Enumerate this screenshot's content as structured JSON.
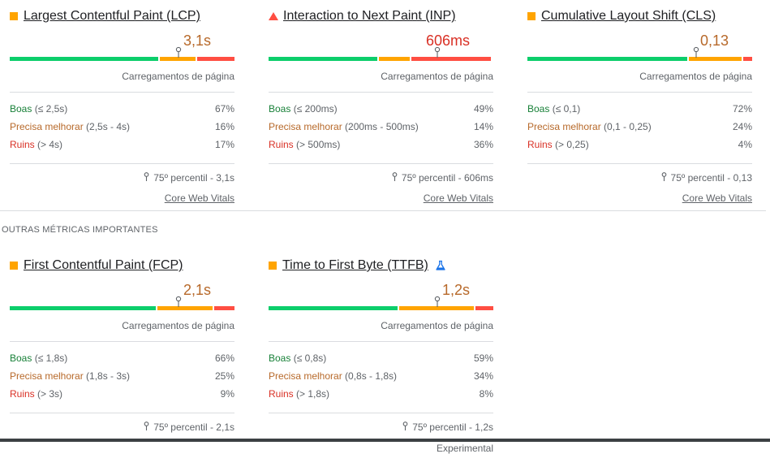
{
  "colors": {
    "good": "#0cce6b",
    "average": "#ffa400",
    "poor": "#ff4e42",
    "good_text": "#188038",
    "average_text": "#b7692a",
    "poor_text": "#d93025"
  },
  "icons": {
    "status_square": "square-icon",
    "status_triangle": "triangle-warning-icon",
    "percentile_pin": "pin-icon",
    "experimental": "flask-icon"
  },
  "core_metrics": [
    {
      "id": "lcp",
      "status": "average",
      "title": "Largest Contentful Paint (LCP)",
      "value": "3,1s",
      "distribution": {
        "good": 0.67,
        "needs_improvement": 0.16,
        "poor": 0.17
      },
      "caption": "Carregamentos de página",
      "rows": [
        {
          "category": "Boas",
          "range": "(≤ 2,5s)",
          "percent": "67%"
        },
        {
          "category": "Precisa melhorar",
          "range": "(2,5s - 4s)",
          "percent": "16%"
        },
        {
          "category": "Ruins",
          "range": "(> 4s)",
          "percent": "17%"
        }
      ],
      "percentile": "75º percentil - 3,1s",
      "link": "Core Web Vitals"
    },
    {
      "id": "inp",
      "status": "poor",
      "title": "Interaction to Next Paint (INP)",
      "value": "606ms",
      "distribution": {
        "good": 0.49,
        "needs_improvement": 0.14,
        "poor": 0.36
      },
      "caption": "Carregamentos de página",
      "rows": [
        {
          "category": "Boas",
          "range": "(≤ 200ms)",
          "percent": "49%"
        },
        {
          "category": "Precisa melhorar",
          "range": "(200ms - 500ms)",
          "percent": "14%"
        },
        {
          "category": "Ruins",
          "range": "(> 500ms)",
          "percent": "36%"
        }
      ],
      "percentile": "75º percentil - 606ms",
      "link": "Core Web Vitals"
    },
    {
      "id": "cls",
      "status": "average",
      "title": "Cumulative Layout Shift (CLS)",
      "value": "0,13",
      "distribution": {
        "good": 0.72,
        "needs_improvement": 0.24,
        "poor": 0.04
      },
      "caption": "Carregamentos de página",
      "rows": [
        {
          "category": "Boas",
          "range": "(≤ 0,1)",
          "percent": "72%"
        },
        {
          "category": "Precisa melhorar",
          "range": "(0,1 - 0,25)",
          "percent": "24%"
        },
        {
          "category": "Ruins",
          "range": "(> 0,25)",
          "percent": "4%"
        }
      ],
      "percentile": "75º percentil - 0,13",
      "link": "Core Web Vitals"
    }
  ],
  "other_section_label": "OUTRAS MÉTRICAS IMPORTANTES",
  "other_metrics": [
    {
      "id": "fcp",
      "status": "average",
      "title": "First Contentful Paint (FCP)",
      "value": "2,1s",
      "distribution": {
        "good": 0.66,
        "needs_improvement": 0.25,
        "poor": 0.09
      },
      "caption": "Carregamentos de página",
      "rows": [
        {
          "category": "Boas",
          "range": "(≤ 1,8s)",
          "percent": "66%"
        },
        {
          "category": "Precisa melhorar",
          "range": "(1,8s - 3s)",
          "percent": "25%"
        },
        {
          "category": "Ruins",
          "range": "(> 3s)",
          "percent": "9%"
        }
      ],
      "percentile": "75º percentil - 2,1s"
    },
    {
      "id": "ttfb",
      "status": "average",
      "title": "Time to First Byte (TTFB)",
      "value": "1,2s",
      "distribution": {
        "good": 0.59,
        "needs_improvement": 0.34,
        "poor": 0.08
      },
      "caption": "Carregamentos de página",
      "rows": [
        {
          "category": "Boas",
          "range": "(≤ 0,8s)",
          "percent": "59%"
        },
        {
          "category": "Precisa melhorar",
          "range": "(0,8s - 1,8s)",
          "percent": "34%"
        },
        {
          "category": "Ruins",
          "range": "(> 1,8s)",
          "percent": "8%"
        }
      ],
      "percentile": "75º percentil - 1,2s",
      "experimental_label": "Experimental"
    }
  ]
}
